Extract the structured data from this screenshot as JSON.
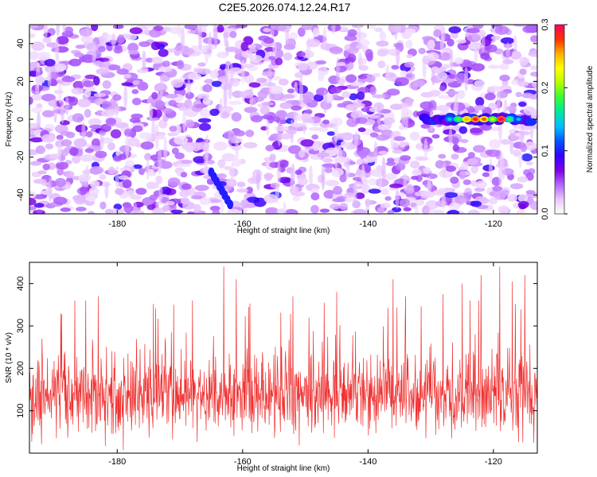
{
  "title": "C2E5.2026.074.12.24.R17",
  "chart_data": [
    {
      "type": "heatmap",
      "xlabel": "Height of straight line (km)",
      "ylabel": "Frequency (Hz)",
      "xlim": [
        -194,
        -113
      ],
      "ylim": [
        -50,
        50
      ],
      "x_ticks": [
        -180,
        -160,
        -140,
        -120
      ],
      "y_ticks": [
        -40,
        -20,
        0,
        20,
        40
      ],
      "colorbar": {
        "label": "Normalized spectral amplitude",
        "range": [
          0.0,
          0.3
        ],
        "ticks": [
          0.0,
          0.1,
          0.2,
          0.3
        ],
        "colors": [
          "#ffffff",
          "#e9c7ff",
          "#b266ff",
          "#7b00e6",
          "#3300ff",
          "#0055ff",
          "#00bfff",
          "#00e6a0",
          "#33ff33",
          "#b3ff00",
          "#ffff00",
          "#ffb000",
          "#ff3000",
          "#ff0066"
        ]
      },
      "highlight_band": {
        "frequency_hz": 0,
        "x_range": [
          -131,
          -114
        ],
        "peak_values": [
          0.12,
          0.16,
          0.22,
          0.26,
          0.24,
          0.18,
          0.27,
          0.15,
          0.11
        ]
      },
      "streak": {
        "x_range": [
          -165,
          -162
        ],
        "y_range": [
          -45,
          -28
        ],
        "value": 0.1
      }
    },
    {
      "type": "line",
      "xlabel": "Height of straight line (km)",
      "ylabel": "SNR (10 * v/v)",
      "xlim": [
        -194,
        -113
      ],
      "ylim": [
        0,
        450
      ],
      "x_ticks": [
        -180,
        -160,
        -140,
        -120
      ],
      "y_ticks": [
        100,
        200,
        300,
        400
      ],
      "color": "#f03030",
      "summary": {
        "baseline": 140,
        "typical_max": 300,
        "peak": 450,
        "min": 0
      },
      "spikes": [
        {
          "x": -192,
          "y": 270
        },
        {
          "x": -189,
          "y": 330
        },
        {
          "x": -185,
          "y": 360
        },
        {
          "x": -183,
          "y": 370
        },
        {
          "x": -171,
          "y": 350
        },
        {
          "x": -168,
          "y": 360
        },
        {
          "x": -163,
          "y": 440
        },
        {
          "x": -161,
          "y": 410
        },
        {
          "x": -159,
          "y": 345
        },
        {
          "x": -152,
          "y": 370
        },
        {
          "x": -147,
          "y": 355
        },
        {
          "x": -145,
          "y": 380
        },
        {
          "x": -136,
          "y": 410
        },
        {
          "x": -134,
          "y": 370
        },
        {
          "x": -128,
          "y": 375
        },
        {
          "x": -125,
          "y": 400
        },
        {
          "x": -122,
          "y": 420
        },
        {
          "x": -119,
          "y": 440
        },
        {
          "x": -117,
          "y": 405
        },
        {
          "x": -115,
          "y": 420
        }
      ]
    }
  ]
}
